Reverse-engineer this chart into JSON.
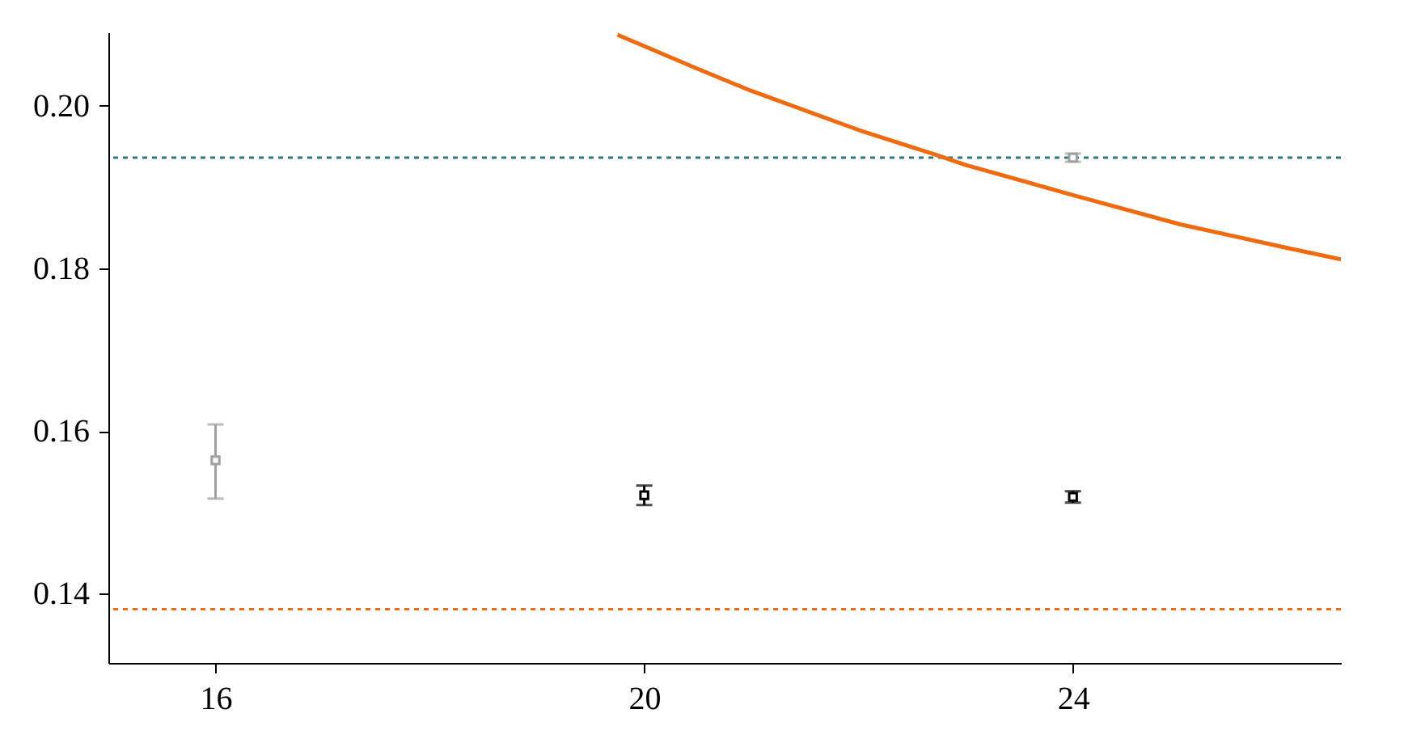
{
  "chart_data": {
    "type": "scatter",
    "xlim": [
      15,
      26.5
    ],
    "ylim": [
      0.1315,
      0.209
    ],
    "xticks": [
      16,
      20,
      24
    ],
    "yticks": [
      {
        "value": 0.14,
        "label": "0.14"
      },
      {
        "value": 0.16,
        "label": "0.16"
      },
      {
        "value": 0.18,
        "label": "0.18"
      },
      {
        "value": 0.2,
        "label": "0.20"
      }
    ],
    "grid": false,
    "marker": "square",
    "series": [
      {
        "type": "line",
        "marker": "none",
        "color": "#f06a0f",
        "x": [
          19.75,
          20.5,
          21,
          22,
          22.73,
          23,
          24,
          25,
          26,
          26.5
        ],
        "values": [
          0.2087,
          0.2045,
          0.2018,
          0.197,
          0.1939,
          0.1927,
          0.189,
          0.1854,
          0.1825,
          0.1811
        ]
      },
      {
        "color": "#a0a0a0",
        "x": [
          16,
          24
        ],
        "values": [
          0.1564,
          0.1936
        ],
        "errors": [
          [
            0.1517,
            0.1608
          ],
          [
            0.1931,
            0.1941
          ]
        ]
      },
      {
        "color": "#000000",
        "x": [
          20,
          24
        ],
        "values": [
          0.1521,
          0.1519
        ],
        "errors": [
          [
            0.1509,
            0.1533
          ],
          [
            0.1512,
            0.1526
          ]
        ]
      }
    ],
    "ref_lines": [
      {
        "axis": "y",
        "value": 0.1936,
        "color": "#2a7a80",
        "line_style": "dashed"
      },
      {
        "axis": "y",
        "value": 0.1381,
        "color": "#f06a0f",
        "line_style": "dashed"
      }
    ]
  }
}
